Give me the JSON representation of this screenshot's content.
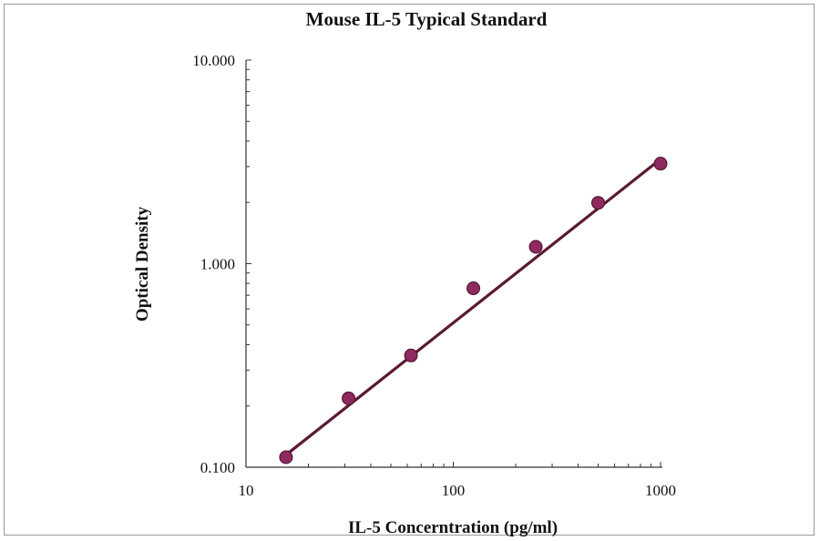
{
  "chart_data": {
    "type": "scatter",
    "title": "Mouse IL-5 Typical Standard",
    "xlabel": "IL-5 Concerntration (pg/ml)",
    "ylabel": "Optical Density",
    "x_scale": "log",
    "y_scale": "log",
    "xlim": [
      10,
      1000
    ],
    "ylim": [
      0.1,
      10
    ],
    "x_ticks": [
      "10",
      "100",
      "1000"
    ],
    "y_ticks": [
      "0.100",
      "1.000",
      "10.000"
    ],
    "grid": false,
    "series": [
      {
        "x": [
          15.6,
          31.25,
          62.5,
          125,
          250,
          500,
          1000
        ],
        "y": [
          0.112,
          0.218,
          0.354,
          0.757,
          1.21,
          1.99,
          3.1
        ]
      }
    ],
    "fit_line": {
      "x": [
        15.6,
        1000
      ],
      "y": [
        0.115,
        3.26
      ]
    },
    "colors": {
      "points": "#8e2a5e",
      "line": "#5a1a34"
    }
  }
}
